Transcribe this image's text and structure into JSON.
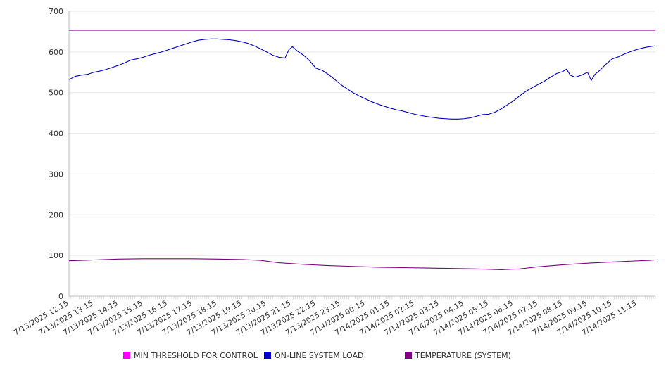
{
  "chart_data": {
    "type": "line",
    "title": "",
    "xlabel": "",
    "ylabel": "",
    "ylim": [
      0,
      700
    ],
    "yticks": [
      0,
      100,
      200,
      300,
      400,
      500,
      600,
      700
    ],
    "grid": true,
    "legend_position": "bottom",
    "x_tick_labels": [
      "7/13/2025 12:15",
      "7/13/2025 13:15",
      "7/13/2025 14:15",
      "7/13/2025 15:15",
      "7/13/2025 16:15",
      "7/13/2025 17:15",
      "7/13/2025 18:15",
      "7/13/2025 19:15",
      "7/13/2025 20:15",
      "7/13/2025 21:15",
      "7/13/2025 22:15",
      "7/13/2025 23:15",
      "7/14/2025 00:15",
      "7/14/2025 01:15",
      "7/14/2025 02:15",
      "7/14/2025 03:15",
      "7/14/2025 04:15",
      "7/14/2025 05:15",
      "7/14/2025 06:15",
      "7/14/2025 07:15",
      "7/14/2025 08:15",
      "7/14/2025 09:15",
      "7/14/2025 10:15",
      "7/14/2025 11:15"
    ],
    "x_range": [
      0,
      23.75
    ],
    "series": [
      {
        "name": "MIN THRESHOLD FOR CONTROL",
        "color": "#ff00ff",
        "points": [
          [
            0,
            653
          ],
          [
            23.75,
            653
          ]
        ]
      },
      {
        "name": "ON-LINE SYSTEM LOAD",
        "color": "#0000cc",
        "points": [
          [
            0,
            532
          ],
          [
            0.25,
            540
          ],
          [
            0.5,
            543
          ],
          [
            0.75,
            545
          ],
          [
            1,
            550
          ],
          [
            1.25,
            553
          ],
          [
            1.5,
            557
          ],
          [
            1.75,
            562
          ],
          [
            2,
            567
          ],
          [
            2.25,
            573
          ],
          [
            2.5,
            580
          ],
          [
            2.75,
            583
          ],
          [
            3,
            587
          ],
          [
            3.25,
            592
          ],
          [
            3.5,
            596
          ],
          [
            3.75,
            600
          ],
          [
            4,
            605
          ],
          [
            4.25,
            610
          ],
          [
            4.5,
            615
          ],
          [
            4.75,
            620
          ],
          [
            5,
            625
          ],
          [
            5.25,
            629
          ],
          [
            5.5,
            631
          ],
          [
            5.75,
            632
          ],
          [
            6,
            632
          ],
          [
            6.25,
            631
          ],
          [
            6.5,
            630
          ],
          [
            6.75,
            628
          ],
          [
            7,
            625
          ],
          [
            7.25,
            621
          ],
          [
            7.5,
            615
          ],
          [
            7.75,
            608
          ],
          [
            8,
            600
          ],
          [
            8.25,
            592
          ],
          [
            8.5,
            587
          ],
          [
            8.75,
            585
          ],
          [
            8.9,
            605
          ],
          [
            9.05,
            613
          ],
          [
            9.25,
            602
          ],
          [
            9.5,
            592
          ],
          [
            9.75,
            578
          ],
          [
            10,
            560
          ],
          [
            10.25,
            555
          ],
          [
            10.5,
            545
          ],
          [
            10.75,
            533
          ],
          [
            11,
            520
          ],
          [
            11.25,
            510
          ],
          [
            11.5,
            500
          ],
          [
            11.75,
            492
          ],
          [
            12,
            485
          ],
          [
            12.25,
            478
          ],
          [
            12.5,
            472
          ],
          [
            12.75,
            467
          ],
          [
            13,
            462
          ],
          [
            13.25,
            458
          ],
          [
            13.5,
            455
          ],
          [
            13.75,
            451
          ],
          [
            14,
            447
          ],
          [
            14.25,
            444
          ],
          [
            14.5,
            441
          ],
          [
            14.75,
            439
          ],
          [
            15,
            437
          ],
          [
            15.25,
            436
          ],
          [
            15.5,
            435
          ],
          [
            15.75,
            435
          ],
          [
            16,
            436
          ],
          [
            16.25,
            438
          ],
          [
            16.5,
            442
          ],
          [
            16.75,
            446
          ],
          [
            17,
            447
          ],
          [
            17.25,
            452
          ],
          [
            17.5,
            460
          ],
          [
            17.75,
            470
          ],
          [
            18,
            480
          ],
          [
            18.25,
            492
          ],
          [
            18.5,
            503
          ],
          [
            18.75,
            512
          ],
          [
            19,
            520
          ],
          [
            19.25,
            528
          ],
          [
            19.5,
            538
          ],
          [
            19.75,
            547
          ],
          [
            20,
            552
          ],
          [
            20.15,
            558
          ],
          [
            20.3,
            543
          ],
          [
            20.5,
            538
          ],
          [
            20.75,
            543
          ],
          [
            21,
            550
          ],
          [
            21.15,
            530
          ],
          [
            21.3,
            545
          ],
          [
            21.5,
            555
          ],
          [
            21.75,
            570
          ],
          [
            22,
            583
          ],
          [
            22.25,
            588
          ],
          [
            22.5,
            595
          ],
          [
            22.75,
            601
          ],
          [
            23,
            606
          ],
          [
            23.25,
            610
          ],
          [
            23.5,
            613
          ],
          [
            23.75,
            615
          ]
        ]
      },
      {
        "name": "TEMPERATURE (SYSTEM)",
        "color": "#800080",
        "points": [
          [
            0,
            87
          ],
          [
            1,
            89
          ],
          [
            2,
            91
          ],
          [
            3,
            92
          ],
          [
            4,
            92
          ],
          [
            5,
            92
          ],
          [
            6,
            91
          ],
          [
            7,
            90
          ],
          [
            7.75,
            88
          ],
          [
            8.5,
            82
          ],
          [
            9.5,
            78
          ],
          [
            10.5,
            75
          ],
          [
            11.5,
            73
          ],
          [
            12.5,
            71
          ],
          [
            13.5,
            70
          ],
          [
            14.5,
            69
          ],
          [
            15.5,
            68
          ],
          [
            16.5,
            67
          ],
          [
            17.5,
            65
          ],
          [
            18.25,
            67
          ],
          [
            19,
            72
          ],
          [
            20,
            77
          ],
          [
            21,
            81
          ],
          [
            22,
            84
          ],
          [
            22.75,
            86
          ],
          [
            23.5,
            88
          ],
          [
            23.75,
            89
          ]
        ]
      }
    ]
  }
}
